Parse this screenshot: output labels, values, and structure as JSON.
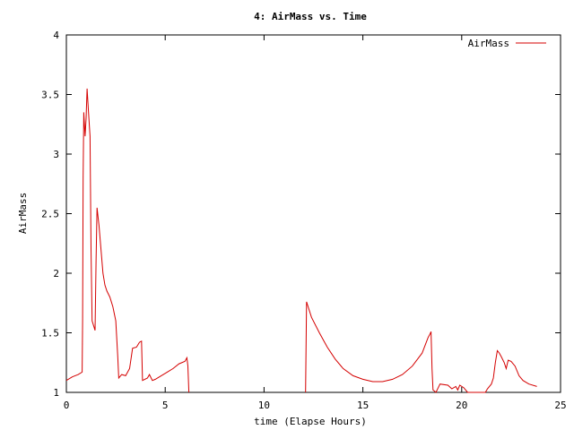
{
  "chart_data": {
    "type": "line",
    "title": "4: AirMass vs. Time",
    "xlabel": "time (Elapse Hours)",
    "ylabel": "AirMass",
    "xlim": [
      0,
      25
    ],
    "ylim": [
      1,
      4
    ],
    "xticks": [
      0,
      5,
      10,
      15,
      20,
      25
    ],
    "yticks": [
      1,
      1.5,
      2,
      2.5,
      3,
      3.5,
      4
    ],
    "ytick_labels": [
      "1",
      "1.5",
      "2",
      "2.5",
      "3",
      "3.5",
      "4"
    ],
    "legend_position": "top-right",
    "grid": false,
    "series": [
      {
        "name": "AirMass",
        "color": "#d40000",
        "segments": [
          [
            [
              0,
              1.1
            ],
            [
              0.3,
              1.13
            ],
            [
              0.6,
              1.15
            ],
            [
              0.8,
              1.17
            ],
            [
              0.82,
              1.6
            ],
            [
              0.85,
              2.8
            ],
            [
              0.88,
              3.35
            ],
            [
              0.95,
              3.15
            ],
            [
              1.0,
              3.3
            ],
            [
              1.05,
              3.55
            ],
            [
              1.12,
              3.35
            ],
            [
              1.2,
              3.15
            ],
            [
              1.25,
              2.2
            ],
            [
              1.3,
              1.6
            ],
            [
              1.45,
              1.52
            ],
            [
              1.5,
              2.1
            ],
            [
              1.55,
              2.55
            ],
            [
              1.65,
              2.4
            ],
            [
              1.75,
              2.2
            ],
            [
              1.85,
              2.0
            ],
            [
              1.95,
              1.9
            ],
            [
              2.05,
              1.85
            ],
            [
              2.2,
              1.8
            ],
            [
              2.35,
              1.72
            ],
            [
              2.5,
              1.6
            ],
            [
              2.6,
              1.3
            ],
            [
              2.65,
              1.12
            ],
            [
              2.8,
              1.15
            ],
            [
              3.0,
              1.14
            ],
            [
              3.2,
              1.2
            ],
            [
              3.35,
              1.37
            ],
            [
              3.55,
              1.38
            ],
            [
              3.7,
              1.42
            ],
            [
              3.8,
              1.43
            ],
            [
              3.85,
              1.1
            ],
            [
              4.1,
              1.12
            ],
            [
              4.2,
              1.15
            ],
            [
              4.35,
              1.1
            ],
            [
              4.5,
              1.11
            ],
            [
              4.8,
              1.14
            ],
            [
              5.1,
              1.17
            ],
            [
              5.4,
              1.2
            ],
            [
              5.7,
              1.24
            ],
            [
              6.0,
              1.26
            ],
            [
              6.1,
              1.29
            ],
            [
              6.15,
              1.22
            ],
            [
              6.2,
              1.0
            ]
          ],
          [
            [
              12.1,
              1.0
            ],
            [
              12.15,
              1.76
            ],
            [
              12.4,
              1.63
            ],
            [
              12.8,
              1.5
            ],
            [
              13.2,
              1.38
            ],
            [
              13.6,
              1.28
            ],
            [
              14.0,
              1.2
            ],
            [
              14.5,
              1.14
            ],
            [
              15.0,
              1.11
            ],
            [
              15.5,
              1.09
            ],
            [
              16.0,
              1.09
            ],
            [
              16.5,
              1.11
            ],
            [
              17.0,
              1.15
            ],
            [
              17.5,
              1.22
            ],
            [
              18.0,
              1.33
            ],
            [
              18.3,
              1.46
            ],
            [
              18.4,
              1.49
            ],
            [
              18.45,
              1.51
            ],
            [
              18.5,
              1.2
            ],
            [
              18.55,
              1.02
            ],
            [
              18.7,
              1.0
            ],
            [
              18.9,
              1.07
            ],
            [
              19.3,
              1.06
            ],
            [
              19.5,
              1.03
            ],
            [
              19.7,
              1.05
            ],
            [
              19.8,
              1.02
            ],
            [
              19.9,
              1.06
            ],
            [
              20.1,
              1.04
            ],
            [
              20.3,
              1.0
            ],
            [
              20.6,
              1.0
            ],
            [
              21.0,
              1.0
            ],
            [
              21.2,
              1.0
            ],
            [
              21.3,
              1.03
            ],
            [
              21.5,
              1.07
            ],
            [
              21.6,
              1.12
            ],
            [
              21.7,
              1.25
            ],
            [
              21.8,
              1.35
            ],
            [
              21.9,
              1.33
            ],
            [
              22.0,
              1.3
            ],
            [
              22.15,
              1.25
            ],
            [
              22.25,
              1.2
            ],
            [
              22.35,
              1.27
            ],
            [
              22.5,
              1.26
            ],
            [
              22.7,
              1.22
            ],
            [
              22.9,
              1.14
            ],
            [
              23.1,
              1.1
            ],
            [
              23.4,
              1.07
            ],
            [
              23.8,
              1.05
            ]
          ]
        ]
      }
    ]
  }
}
